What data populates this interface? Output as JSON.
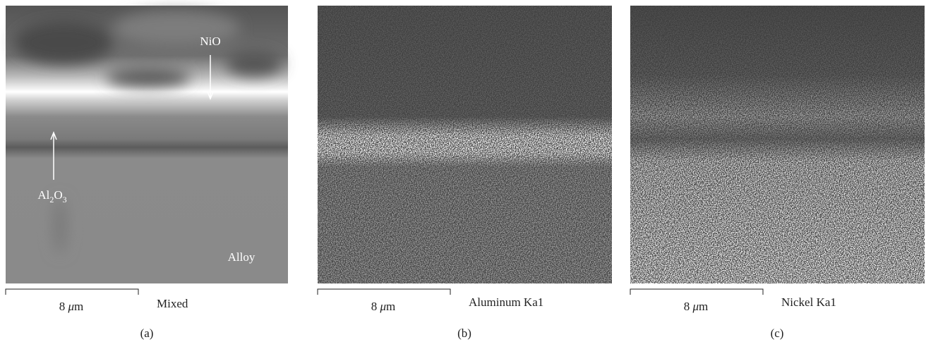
{
  "panels": [
    {
      "labels": [
        "NiO",
        "Al2O3",
        "Alloy"
      ],
      "scale_label": "8 μm",
      "caption": "Mixed",
      "letter": "(a)"
    },
    {
      "scale_label": "8 μm",
      "caption": "Aluminum Ka1",
      "letter": "(b)"
    },
    {
      "scale_label": "8 μm",
      "caption": "Nickel Ka1",
      "letter": "(c)"
    }
  ]
}
